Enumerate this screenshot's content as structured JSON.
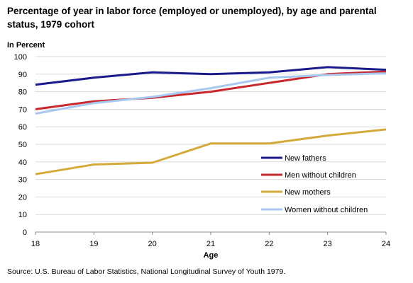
{
  "chart_data": {
    "type": "line",
    "title": "Percentage of year in labor force (employed or unemployed), by age and parental status, 1979 cohort",
    "ylabel": "In Percent",
    "xlabel": "Age",
    "x": [
      18,
      19,
      20,
      21,
      22,
      23,
      24
    ],
    "ylim": [
      0,
      100
    ],
    "yticks": [
      0,
      10,
      20,
      30,
      40,
      50,
      60,
      70,
      80,
      90,
      100
    ],
    "grid": "horizontal",
    "legend_position": "right",
    "series": [
      {
        "name": "New fathers",
        "color": "#1a1a8c",
        "values": [
          84,
          88,
          91,
          90,
          91,
          94,
          92.5
        ]
      },
      {
        "name": "Men without children",
        "color": "#c8282d",
        "values": [
          70,
          74.5,
          76.5,
          80,
          85,
          90,
          91.5
        ]
      },
      {
        "name": "New mothers",
        "color": "#d4aa3a",
        "values": [
          33,
          38.5,
          39.5,
          50.5,
          50.5,
          55,
          58.5
        ]
      },
      {
        "name": "Women without children",
        "color": "#a9c8ef",
        "values": [
          67.5,
          73.5,
          77,
          82,
          88,
          89.5,
          90.5
        ]
      }
    ]
  },
  "source": "Source: U.S. Bureau of Labor Statistics, National Longitudinal Survey of Youth 1979."
}
